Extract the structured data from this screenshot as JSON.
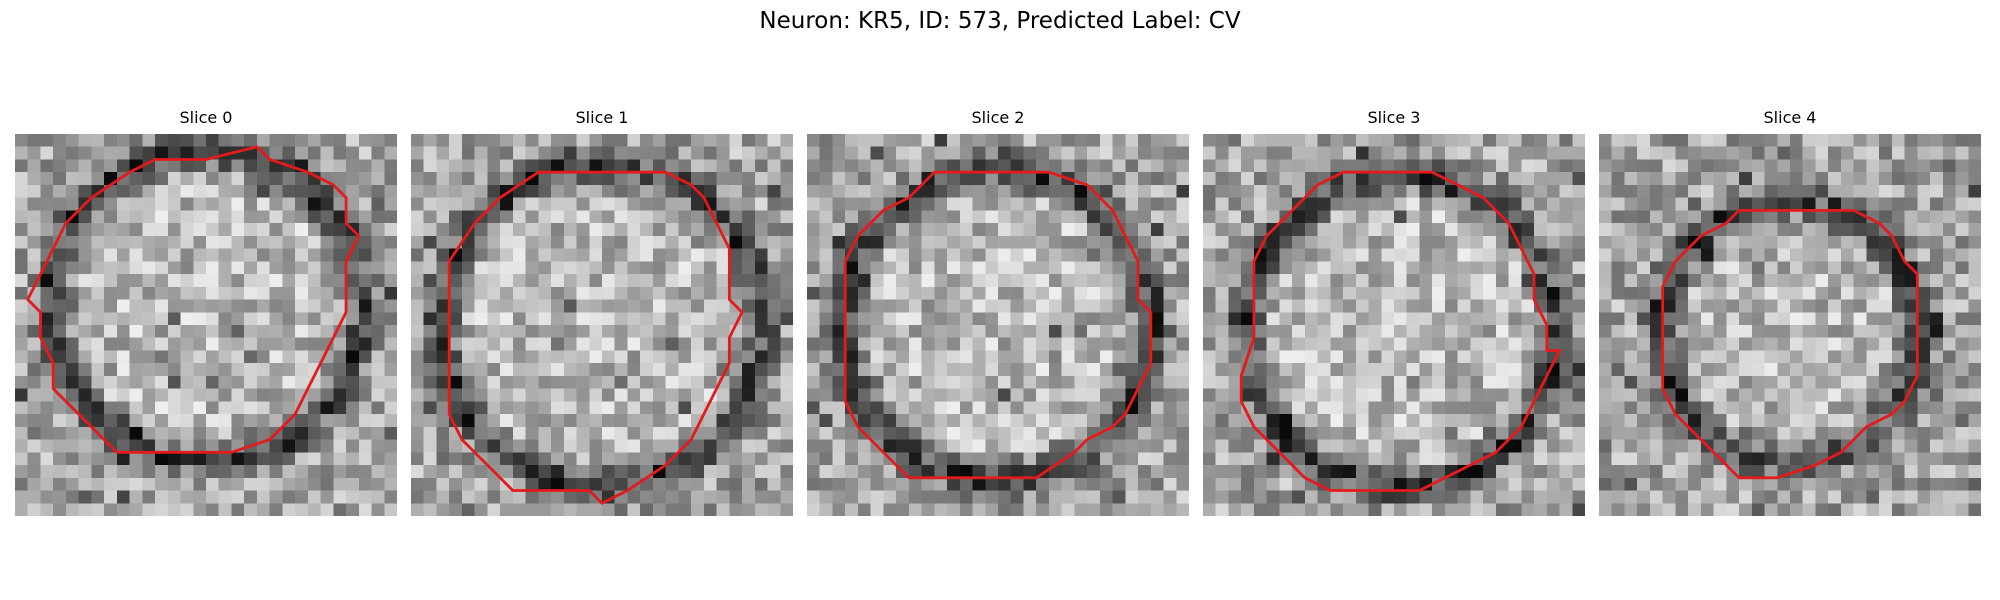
{
  "figure": {
    "title": "Neuron: KR5, ID: 573, Predicted Label: CV",
    "colors": {
      "contour": "#e41a1c",
      "background": "#ffffff"
    }
  },
  "panels": [
    {
      "title": "Slice 0",
      "texture_seed": 11
    },
    {
      "title": "Slice 1",
      "texture_seed": 23
    },
    {
      "title": "Slice 2",
      "texture_seed": 37
    },
    {
      "title": "Slice 3",
      "texture_seed": 41
    },
    {
      "title": "Slice 4",
      "texture_seed": 59
    }
  ]
}
